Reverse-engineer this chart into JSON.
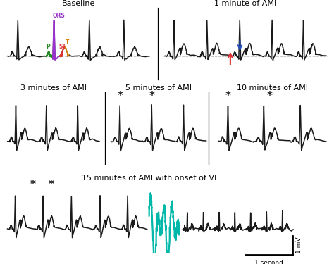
{
  "title_row1_left": "Baseline",
  "title_row1_right": "1 minute of AMI",
  "title_row2_left": "3 minutes of AMI",
  "title_row2_mid": "5 minutes of AMI",
  "title_row2_right": "10 minutes of AMI",
  "title_row3": "15 minutes of AMI with onset of VF",
  "scale_label_x": "1 second",
  "scale_label_y": "1 mV",
  "ecg_color": "#1a1a1a",
  "teal_color": "#00b8a9",
  "bg_color": "#ffffff",
  "dashed_color": "#bbbbbb",
  "arrow_red": "#e03030",
  "arrow_blue": "#2050c0",
  "label_P_color": "#228B22",
  "label_QRS_color": "#9932CC",
  "label_ST_color": "#e03030",
  "label_T_color": "#d4820a"
}
